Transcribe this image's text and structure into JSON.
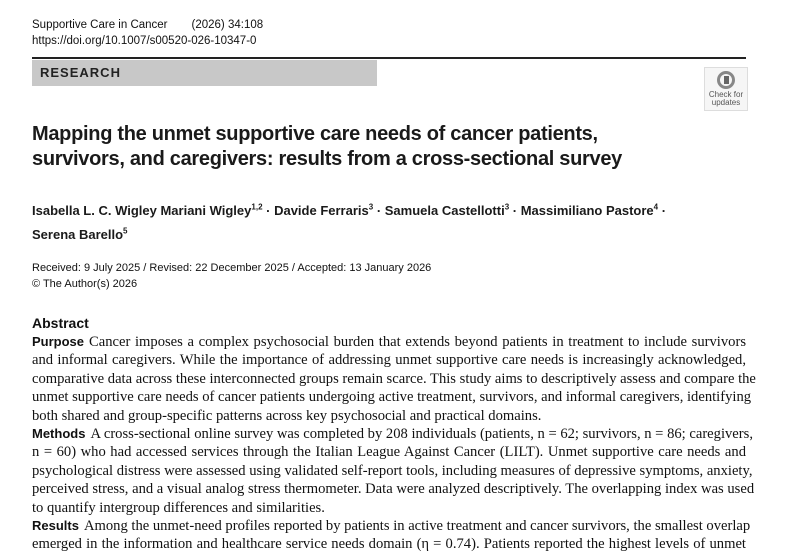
{
  "journal": {
    "name": "Supportive Care in Cancer",
    "volume": "(2026) 34:108",
    "doi": "https://doi.org/10.1007/s00520-026-10347-0"
  },
  "article_type": "RESEARCH",
  "badge": {
    "line1": "Check for",
    "line2": "updates"
  },
  "title": {
    "line1": "Mapping the unmet supportive care needs of cancer patients,",
    "line2": "survivors, and caregivers: results from a cross-sectional survey"
  },
  "authors": [
    {
      "name": "Isabella L. C.  Wigley Mariani Wigley",
      "aff": "1,2"
    },
    {
      "name": "Davide Ferraris",
      "aff": "3"
    },
    {
      "name": "Samuela Castellotti",
      "aff": "3"
    },
    {
      "name": "Massimiliano Pastore",
      "aff": "4"
    },
    {
      "name": "Serena Barello",
      "aff": "5"
    }
  ],
  "dates": "Received: 9 July 2025 / Revised: 22 December 2025 / Accepted: 13 January 2026",
  "copyright": "© The Author(s) 2026",
  "abstract": {
    "heading": "Abstract",
    "purpose": {
      "label": "Purpose",
      "lines": [
        "Cancer imposes a complex psychosocial burden that extends beyond patients in treatment to include survivors",
        "and informal caregivers. While the importance of addressing unmet supportive care needs is increasingly acknowledged,",
        "comparative data across these interconnected groups remain scarce. This study aims to descriptively assess and compare the",
        "unmet supportive care needs of cancer patients undergoing active treatment, survivors, and informal caregivers, identifying",
        "both shared and group-specific patterns across key psychosocial and practical domains."
      ]
    },
    "methods": {
      "label": "Methods",
      "lines": [
        "A cross-sectional online survey was completed by 208 individuals (patients, n = 62; survivors, n = 86; caregivers,",
        "n = 60) who had accessed services through the Italian League Against Cancer (LILT). Unmet supportive care needs and",
        "psychological distress were assessed using validated self-report tools, including measures of depressive symptoms, anxiety,",
        "perceived stress, and a visual analog stress thermometer. Data were analyzed descriptively. The overlapping index was used",
        "to quantify intergroup differences and similarities."
      ]
    },
    "results": {
      "label": "Results",
      "lines": [
        "Among the unmet-need profiles reported by patients in active treatment and cancer survivors, the smallest overlap",
        "emerged in the information and healthcare service needs domain (η = 0.74). Patients reported the highest levels of unmet"
      ]
    }
  }
}
